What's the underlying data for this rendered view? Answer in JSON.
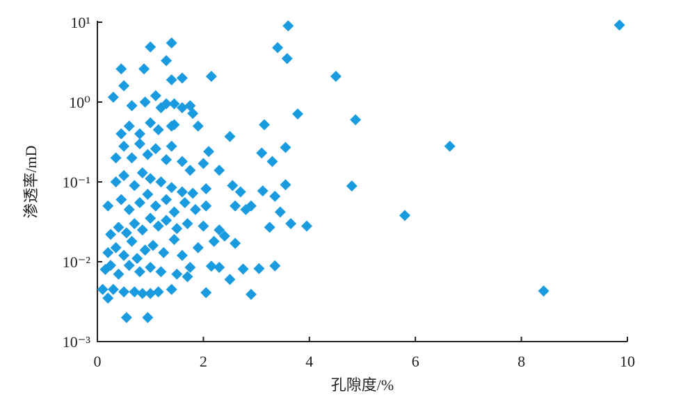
{
  "chart_data": {
    "type": "scatter",
    "xlabel": "孔隙度/%",
    "ylabel": "渗透率/mD",
    "color": "#1a9be0",
    "log_y": true,
    "xlim": [
      0,
      10
    ],
    "xticks": [
      0,
      2,
      4,
      6,
      8,
      10
    ],
    "ylim": [
      0.001,
      10
    ],
    "yticks": [
      {
        "value": 10,
        "label": "10¹"
      },
      {
        "value": 1,
        "label": "10⁰"
      },
      {
        "value": 0.1,
        "label": "10⁻¹"
      },
      {
        "value": 0.01,
        "label": "10⁻²"
      },
      {
        "value": 0.001,
        "label": "10⁻³"
      }
    ],
    "x": [
      9.85,
      8.42,
      6.65,
      5.8,
      4.8,
      4.87,
      4.5,
      3.6,
      3.4,
      3.58,
      3.78,
      3.15,
      3.55,
      3.1,
      3.3,
      3.55,
      3.12,
      3.35,
      3.45,
      3.65,
      3.95,
      3.25,
      3.35,
      3.05,
      2.9,
      2.5,
      2.15,
      2.5,
      2.75,
      2.05,
      2.3,
      2.15,
      1.4,
      1.0,
      1.3,
      0.45,
      0.88,
      1.6,
      1.4,
      0.5,
      0.3,
      0.55,
      0.95,
      0.2,
      0.1,
      0.3,
      0.5,
      0.7,
      0.85,
      1.0,
      1.15,
      1.4,
      0.15,
      0.25,
      0.4,
      0.6,
      0.8,
      1.0,
      1.2,
      1.5,
      1.7,
      1.75,
      0.2,
      0.35,
      0.5,
      0.65,
      0.75,
      0.9,
      1.05,
      1.25,
      1.45,
      1.6,
      1.9,
      2.2,
      2.4,
      0.25,
      0.4,
      0.55,
      0.7,
      0.85,
      1.0,
      1.15,
      1.3,
      1.5,
      1.7,
      2.0,
      2.3,
      2.6,
      0.2,
      0.45,
      0.6,
      0.8,
      0.95,
      1.1,
      1.3,
      1.45,
      1.65,
      1.85,
      2.05,
      2.6,
      2.8,
      2.9,
      0.35,
      0.5,
      0.7,
      0.85,
      1.0,
      1.2,
      1.4,
      1.6,
      1.8,
      2.05,
      2.55,
      2.7,
      0.35,
      0.5,
      0.65,
      0.8,
      0.95,
      1.1,
      1.3,
      1.4,
      1.6,
      1.75,
      2.0,
      2.1,
      2.3,
      0.45,
      0.6,
      0.8,
      1.0,
      1.15,
      1.4,
      1.6,
      1.75,
      1.8,
      1.45,
      1.3,
      1.1,
      0.9,
      0.65,
      1.2,
      1.45,
      1.9
    ],
    "values": [
      9.2,
      0.0043,
      0.28,
      0.038,
      0.089,
      0.6,
      2.1,
      9.0,
      4.8,
      3.5,
      0.71,
      0.52,
      0.27,
      0.23,
      0.18,
      0.092,
      0.077,
      0.066,
      0.042,
      0.03,
      0.028,
      0.027,
      0.0089,
      0.0082,
      0.0039,
      0.37,
      2.1,
      0.006,
      0.0081,
      0.0041,
      0.0085,
      0.0088,
      5.5,
      4.9,
      3.3,
      2.6,
      2.6,
      2.0,
      1.9,
      1.6,
      1.15,
      0.002,
      0.002,
      0.0035,
      0.0045,
      0.0045,
      0.0042,
      0.0042,
      0.004,
      0.004,
      0.0042,
      0.0045,
      0.008,
      0.009,
      0.007,
      0.009,
      0.0075,
      0.0085,
      0.0075,
      0.007,
      0.0065,
      0.0085,
      0.013,
      0.015,
      0.012,
      0.018,
      0.011,
      0.014,
      0.016,
      0.013,
      0.019,
      0.012,
      0.015,
      0.018,
      0.021,
      0.022,
      0.027,
      0.023,
      0.03,
      0.025,
      0.035,
      0.028,
      0.033,
      0.026,
      0.03,
      0.028,
      0.025,
      0.017,
      0.05,
      0.06,
      0.045,
      0.055,
      0.07,
      0.05,
      0.06,
      0.042,
      0.055,
      0.045,
      0.05,
      0.05,
      0.045,
      0.05,
      0.1,
      0.12,
      0.09,
      0.13,
      0.11,
      0.1,
      0.085,
      0.075,
      0.072,
      0.082,
      0.09,
      0.075,
      0.2,
      0.28,
      0.2,
      0.3,
      0.22,
      0.26,
      0.19,
      0.28,
      0.18,
      0.14,
      0.17,
      0.24,
      0.14,
      0.4,
      0.5,
      0.4,
      0.55,
      0.45,
      0.5,
      0.85,
      0.9,
      0.72,
      0.95,
      0.95,
      1.2,
      1.0,
      0.9,
      0.85,
      0.52,
      0.5
    ]
  }
}
